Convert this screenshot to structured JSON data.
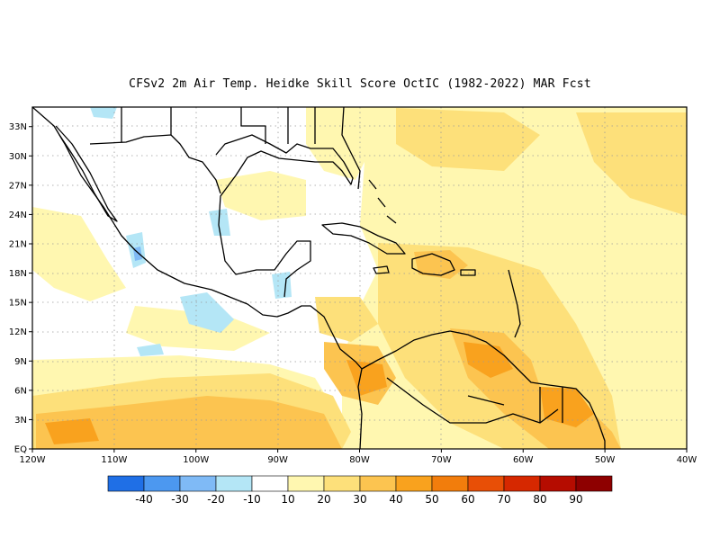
{
  "title": "CFSv2  2m Air Temp. Heidke Skill Score OctIC (1982-2022) MAR Fcst",
  "map": {
    "lon_range": [
      -120,
      -40
    ],
    "lat_range": [
      0,
      35
    ],
    "lon_ticks": [
      "120W",
      "110W",
      "100W",
      "90W",
      "80W",
      "70W",
      "60W",
      "50W",
      "40W"
    ],
    "lat_ticks": [
      "EQ",
      "3N",
      "6N",
      "9N",
      "12N",
      "15N",
      "18N",
      "21N",
      "24N",
      "27N",
      "30N",
      "33N"
    ],
    "grid": true
  },
  "colorbar": {
    "colors": [
      "#1f6fe6",
      "#4c98f0",
      "#7fbaf6",
      "#b4e6f6",
      "#ffffff",
      "#fff7b0",
      "#fde07a",
      "#fcc450",
      "#f9a21e",
      "#f27d0c",
      "#e84f06",
      "#d62800",
      "#b50c00",
      "#8e0000"
    ],
    "labels": [
      "-40",
      "-30",
      "-20",
      "-10",
      "10",
      "20",
      "30",
      "40",
      "50",
      "60",
      "70",
      "80",
      "90"
    ]
  }
}
